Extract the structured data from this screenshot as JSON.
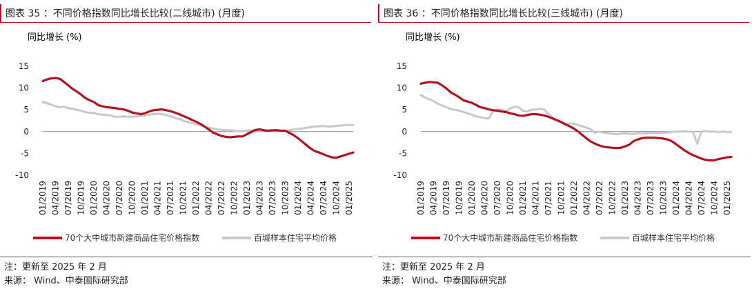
{
  "colors": {
    "accent": "#b3121f",
    "grey": "#c8c8c8",
    "axis": "#888888"
  },
  "charts": [
    {
      "title": "图表 35 ：不同价格指数同比增长比较(二线城市) (月度)",
      "note": "注：更新至 2025 年 2 月",
      "source": "来源： Wind、中泰国际研究部"
    },
    {
      "title": "图表 36 ：不同价格指数同比增长比较(三线城市) (月度)",
      "note": "注：更新至 2025 年 2 月",
      "source": "来源： Wind、中泰国际研究部"
    }
  ],
  "chart_data": [
    {
      "type": "line",
      "title": "图表 35 ：不同价格指数同比增长比较(二线城市) (月度)",
      "ylabel": "同比增长 (%)",
      "xlabel": "",
      "ylim": [
        -10,
        15
      ],
      "yticks": [
        15,
        10,
        5,
        0,
        -5,
        -10
      ],
      "x_start": "2019-01",
      "n_points": 74,
      "xtick_labels": [
        "01/2019",
        "04/2019",
        "07/2019",
        "10/2019",
        "01/2020",
        "04/2020",
        "07/2020",
        "10/2020",
        "01/2021",
        "04/2021",
        "07/2021",
        "10/2021",
        "01/2022",
        "04/2022",
        "07/2022",
        "10/2022",
        "01/2023",
        "04/2023",
        "07/2023",
        "10/2023",
        "01/2024",
        "04/2024",
        "07/2024",
        "10/2024",
        "01/2025"
      ],
      "legend": "bottom",
      "series": [
        {
          "name": "70个大中城市新建商品住宅价格指数",
          "color": "#b3121f",
          "values": [
            11.6,
            12.0,
            12.2,
            12.3,
            12.1,
            11.4,
            10.6,
            9.8,
            9.2,
            8.5,
            7.7,
            7.2,
            6.8,
            6.1,
            5.8,
            5.6,
            5.5,
            5.4,
            5.2,
            5.1,
            4.8,
            4.4,
            4.2,
            4.0,
            4.2,
            4.6,
            4.9,
            5.0,
            5.1,
            4.9,
            4.7,
            4.4,
            4.0,
            3.6,
            3.2,
            2.7,
            2.3,
            1.8,
            1.2,
            0.5,
            -0.2,
            -0.6,
            -1.0,
            -1.2,
            -1.3,
            -1.2,
            -1.1,
            -1.1,
            -0.6,
            -0.1,
            0.4,
            0.5,
            0.3,
            0.2,
            0.3,
            0.3,
            0.2,
            0.2,
            -0.3,
            -0.8,
            -1.5,
            -2.3,
            -3.1,
            -3.9,
            -4.5,
            -4.8,
            -5.2,
            -5.6,
            -5.9,
            -6.0,
            -5.7,
            -5.4,
            -5.1,
            -4.8
          ]
        },
        {
          "name": "百城样本住宅平均价格",
          "color": "#c8c8c8",
          "values": [
            6.8,
            6.5,
            6.2,
            5.8,
            5.6,
            5.7,
            5.4,
            5.2,
            5.0,
            4.8,
            4.5,
            4.3,
            4.3,
            4.0,
            3.9,
            3.8,
            3.7,
            3.4,
            3.4,
            3.5,
            3.4,
            3.4,
            3.5,
            3.6,
            3.7,
            3.9,
            4.0,
            4.1,
            4.0,
            3.8,
            3.5,
            3.2,
            2.9,
            2.5,
            2.2,
            2.0,
            1.7,
            1.4,
            1.1,
            0.9,
            0.7,
            0.5,
            0.4,
            0.3,
            0.3,
            0.2,
            0.1,
            0.1,
            0.2,
            0.3,
            0.3,
            0.2,
            0.1,
            0.1,
            0.1,
            0.1,
            0.1,
            0.2,
            0.3,
            0.5,
            0.6,
            0.7,
            0.9,
            1.0,
            1.2,
            1.2,
            1.3,
            1.2,
            1.2,
            1.3,
            1.4,
            1.5,
            1.5,
            1.5
          ]
        }
      ]
    },
    {
      "type": "line",
      "title": "图表 36 ：不同价格指数同比增长比较(三线城市) (月度)",
      "ylabel": "同比增长 (%)",
      "xlabel": "",
      "ylim": [
        -10,
        15
      ],
      "yticks": [
        15,
        10,
        5,
        0,
        -5,
        -10
      ],
      "x_start": "2019-01",
      "n_points": 74,
      "xtick_labels": [
        "01/2019",
        "04/2019",
        "07/2019",
        "10/2019",
        "01/2020",
        "04/2020",
        "07/2020",
        "10/2020",
        "01/2021",
        "04/2021",
        "07/2021",
        "10/2021",
        "01/2022",
        "04/2022",
        "07/2022",
        "10/2022",
        "01/2023",
        "04/2023",
        "07/2023",
        "10/2023",
        "01/2024",
        "04/2024",
        "07/2024",
        "10/2024",
        "01/2025"
      ],
      "legend": "bottom",
      "series": [
        {
          "name": "70个大中城市新建商品住宅价格指数",
          "color": "#b3121f",
          "values": [
            11.0,
            11.2,
            11.4,
            11.3,
            11.2,
            10.6,
            9.9,
            9.0,
            8.5,
            7.9,
            7.2,
            6.9,
            6.6,
            6.1,
            5.6,
            5.4,
            5.1,
            4.9,
            4.8,
            4.6,
            4.5,
            4.2,
            4.0,
            3.7,
            3.6,
            3.8,
            4.0,
            4.0,
            3.9,
            3.7,
            3.4,
            3.0,
            2.6,
            2.2,
            1.7,
            1.2,
            0.7,
            0.0,
            -0.8,
            -1.6,
            -2.3,
            -2.8,
            -3.2,
            -3.5,
            -3.6,
            -3.7,
            -3.8,
            -3.7,
            -3.4,
            -3.0,
            -2.2,
            -1.8,
            -1.5,
            -1.4,
            -1.4,
            -1.4,
            -1.5,
            -1.6,
            -1.8,
            -2.2,
            -2.9,
            -3.6,
            -4.3,
            -4.9,
            -5.4,
            -5.8,
            -6.2,
            -6.5,
            -6.6,
            -6.6,
            -6.3,
            -6.1,
            -5.9,
            -5.8
          ]
        },
        {
          "name": "百城样本住宅平均价格",
          "color": "#c8c8c8",
          "values": [
            8.4,
            7.8,
            7.4,
            7.0,
            6.4,
            6.0,
            5.6,
            5.2,
            5.0,
            4.8,
            4.5,
            4.2,
            3.9,
            3.5,
            3.3,
            3.1,
            3.0,
            4.8,
            5.1,
            5.0,
            4.7,
            5.3,
            5.7,
            5.6,
            4.8,
            4.6,
            5.0,
            5.1,
            5.2,
            5.1,
            4.0,
            3.3,
            2.7,
            2.1,
            1.5,
            1.9,
            1.8,
            1.5,
            1.2,
            0.9,
            0.5,
            -0.3,
            0.0,
            -0.3,
            -0.4,
            -0.5,
            -0.6,
            -0.5,
            -0.4,
            -0.5,
            -0.5,
            -0.4,
            -0.4,
            -0.4,
            -0.3,
            -0.3,
            -0.3,
            -0.3,
            -0.2,
            -0.1,
            0.0,
            0.0,
            0.1,
            0.0,
            -0.1,
            -2.8,
            0.1,
            0.1,
            0.0,
            0.0,
            -0.1,
            0.0,
            -0.1,
            -0.1
          ]
        }
      ]
    }
  ]
}
